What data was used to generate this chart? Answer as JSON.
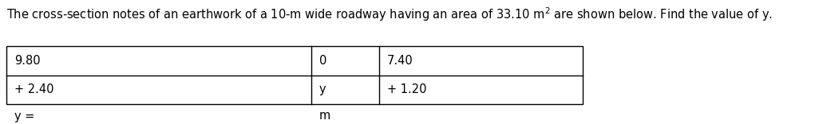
{
  "title_text": "The cross-section notes of an earthwork of a 10-m wide roadway having an area of 33.10 m$^{2}$ are shown below. Find the value of y.",
  "table_data": [
    [
      "9.80",
      "0",
      "7.40"
    ],
    [
      "+ 2.40",
      "y",
      "+ 1.20"
    ]
  ],
  "footer_left": "y =",
  "footer_right": "m",
  "background_color": "#ffffff",
  "text_color": "#000000",
  "font_size": 10.5,
  "table_font_size": 10.5,
  "fig_width": 10.21,
  "fig_height": 1.56,
  "dpi": 100
}
